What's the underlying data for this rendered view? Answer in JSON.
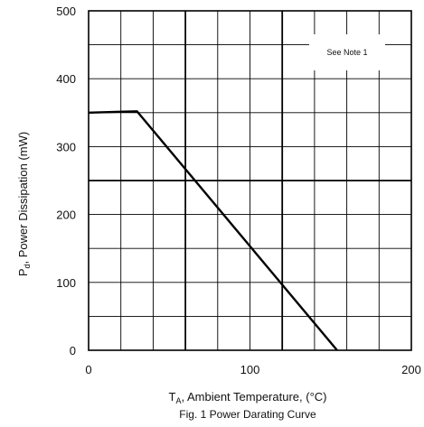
{
  "chart_data": {
    "type": "line",
    "caption": "Fig. 1 Power Darating Curve",
    "xlabel": "T_A, Ambient Temperature, (°C)",
    "xlabel_parts": {
      "main": "T",
      "sub": "A",
      "rest": ", Ambient Temperature, (°C)"
    },
    "ylabel": "P_d, Power Dissipation (mW)",
    "ylabel_parts": {
      "main": "P",
      "sub": "d",
      "rest": ", Power Dissipation (mW)"
    },
    "xlim": [
      0,
      200
    ],
    "ylim": [
      0,
      500
    ],
    "x_ticks": [
      "0",
      "100",
      "200"
    ],
    "y_ticks": [
      "0",
      "100",
      "200",
      "300",
      "400",
      "500"
    ],
    "grid": true,
    "annotation": "See Note 1",
    "series": [
      {
        "x": [
          0,
          30,
          154
        ],
        "y": [
          350,
          352,
          0
        ]
      }
    ]
  }
}
